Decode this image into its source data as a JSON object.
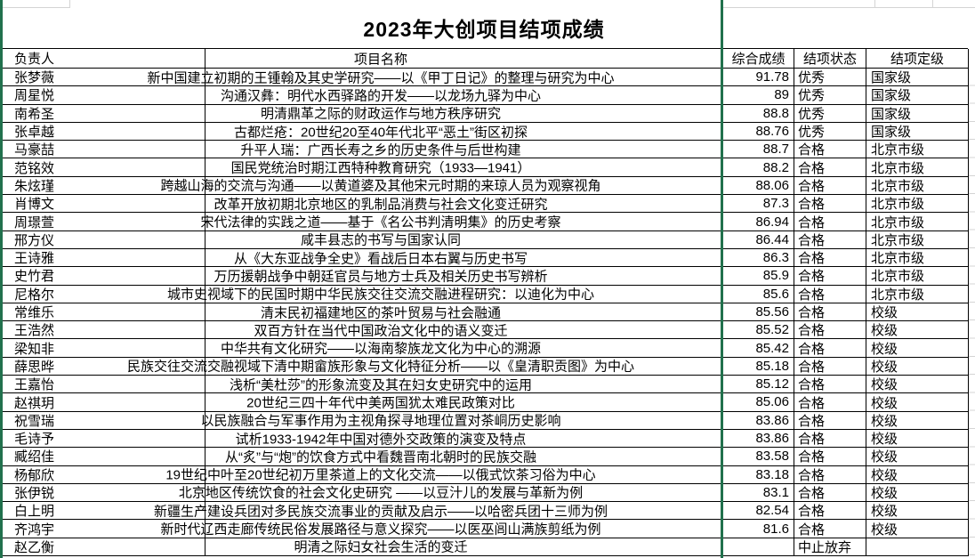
{
  "sheet": {
    "title": "2023年大创项目结项成绩",
    "header": {
      "owner": "负责人",
      "project": "项目名称",
      "score": "综合成绩",
      "status": "结项状态",
      "level": "结项定级"
    },
    "rows": [
      {
        "owner": "张梦薇",
        "project": "新中国建立初期的王锺翰及其史学研究——以《甲丁日记》的整理与研究为中心",
        "score": "91.78",
        "status": "优秀",
        "level": "国家级"
      },
      {
        "owner": "周星悦",
        "project": "沟通汉彝：明代水西驿路的开发——以龙场九驿为中心",
        "score": "89",
        "status": "优秀",
        "level": "国家级"
      },
      {
        "owner": "南希圣",
        "project": "明清鼎革之际的财政运作与地方秩序研究",
        "score": "88.8",
        "status": "优秀",
        "level": "国家级"
      },
      {
        "owner": "张卓越",
        "project": "古都烂疮：20世纪20至40年代北平“恶土”街区初探",
        "score": "88.76",
        "status": "优秀",
        "level": "国家级"
      },
      {
        "owner": "马豪喆",
        "project": "升平人瑞：广西长寿之乡的历史条件与后世构建",
        "score": "88.7",
        "status": "合格",
        "level": "北京市级"
      },
      {
        "owner": "范铭效",
        "project": "国民党统治时期江西特种教育研究（1933—1941）",
        "score": "88.2",
        "status": "合格",
        "level": "北京市级"
      },
      {
        "owner": "朱炫瑾",
        "project": "跨越山海的交流与沟通——以黄道婆及其他宋元时期的来琼人员为观察视角",
        "score": "88.06",
        "status": "合格",
        "level": "北京市级"
      },
      {
        "owner": "肖博文",
        "project": "改革开放初期北京地区的乳制品消费与社会文化变迁研究",
        "score": "87.3",
        "status": "合格",
        "level": "北京市级"
      },
      {
        "owner": "周璟萱",
        "project": "宋代法律的实践之道——基于《名公书判清明集》的历史考察",
        "score": "86.94",
        "status": "合格",
        "level": "北京市级"
      },
      {
        "owner": "邢方仪",
        "project": "咸丰县志的书写与国家认同",
        "score": "86.44",
        "status": "合格",
        "level": "北京市级"
      },
      {
        "owner": "王诗雅",
        "project": "从《大东亚战争全史》看战后日本右翼与历史书写",
        "score": "86.3",
        "status": "合格",
        "level": "北京市级"
      },
      {
        "owner": "史竹君",
        "project": "万历援朝战争中朝廷官员与地方士兵及相关历史书写辨析",
        "score": "85.9",
        "status": "合格",
        "level": "北京市级"
      },
      {
        "owner": "尼格尔",
        "project": "城市史视域下的民国时期中华民族交往交流交融进程研究：以迪化为中心",
        "score": "85.6",
        "status": "合格",
        "level": "北京市级"
      },
      {
        "owner": "常维乐",
        "project": "清末民初福建地区的茶叶贸易与社会融通",
        "score": "85.56",
        "status": "合格",
        "level": "校级"
      },
      {
        "owner": "王浩然",
        "project": "双百方针在当代中国政治文化中的语义变迁",
        "score": "85.52",
        "status": "合格",
        "level": "校级"
      },
      {
        "owner": "梁知非",
        "project": "中华共有文化研究——以海南黎族龙文化为中心的溯源",
        "score": "85.42",
        "status": "合格",
        "level": "校级"
      },
      {
        "owner": "薛思晔",
        "project": "民族交往交流交融视域下清中期畲族形象与文化特征分析——以《皇清职贡图》为中心",
        "score": "85.18",
        "status": "合格",
        "level": "校级"
      },
      {
        "owner": "王嘉怡",
        "project": "浅析“美杜莎”的形象流变及其在妇女史研究中的运用",
        "score": "85.12",
        "status": "合格",
        "level": "校级"
      },
      {
        "owner": "赵祺玥",
        "project": "20世纪三四十年代中美两国犹太难民政策对比",
        "score": "85.06",
        "status": "合格",
        "level": "校级"
      },
      {
        "owner": "祝雪瑞",
        "project": "以民族融合与军事作用为主视角探寻地理位置对茶峒历史影响",
        "score": "83.86",
        "status": "合格",
        "level": "校级"
      },
      {
        "owner": "毛诗予",
        "project": "试析1933-1942年中国对德外交政策的演变及特点",
        "score": "83.86",
        "status": "合格",
        "level": "校级"
      },
      {
        "owner": "臧绍佳",
        "project": "从“炙”与“炮”的饮食方式中看魏晋南北朝时的民族交融",
        "score": "83.58",
        "status": "合格",
        "level": "校级"
      },
      {
        "owner": "杨郁欣",
        "project": "19世纪中叶至20世纪初万里茶道上的文化交流——以俄式饮茶习俗为中心",
        "score": "83.18",
        "status": "合格",
        "level": "校级"
      },
      {
        "owner": "张伊锐",
        "project": "北京地区传统饮食的社会文化史研究 ——以豆汁儿的发展与革新为例",
        "score": "83.1",
        "status": "合格",
        "level": "校级"
      },
      {
        "owner": "白上明",
        "project": "新疆生产建设兵团对多民族交流事业的贡献及启示——以哈密兵团十三师为例",
        "score": "82.54",
        "status": "合格",
        "level": "校级"
      },
      {
        "owner": "齐鸿宇",
        "project": "新时代辽西走廊传统民俗发展路径与意义探究——以医巫闾山满族剪纸为例",
        "score": "81.6",
        "status": "合格",
        "level": "校级"
      },
      {
        "owner": "赵乙衡",
        "project": "明清之际妇女社会生活的变迁",
        "score": "",
        "status": "中止放弃",
        "level": ""
      }
    ]
  },
  "colors": {
    "pane_line": "#21714d",
    "table_border": "#000000",
    "gridline": "#d4d4d4"
  }
}
